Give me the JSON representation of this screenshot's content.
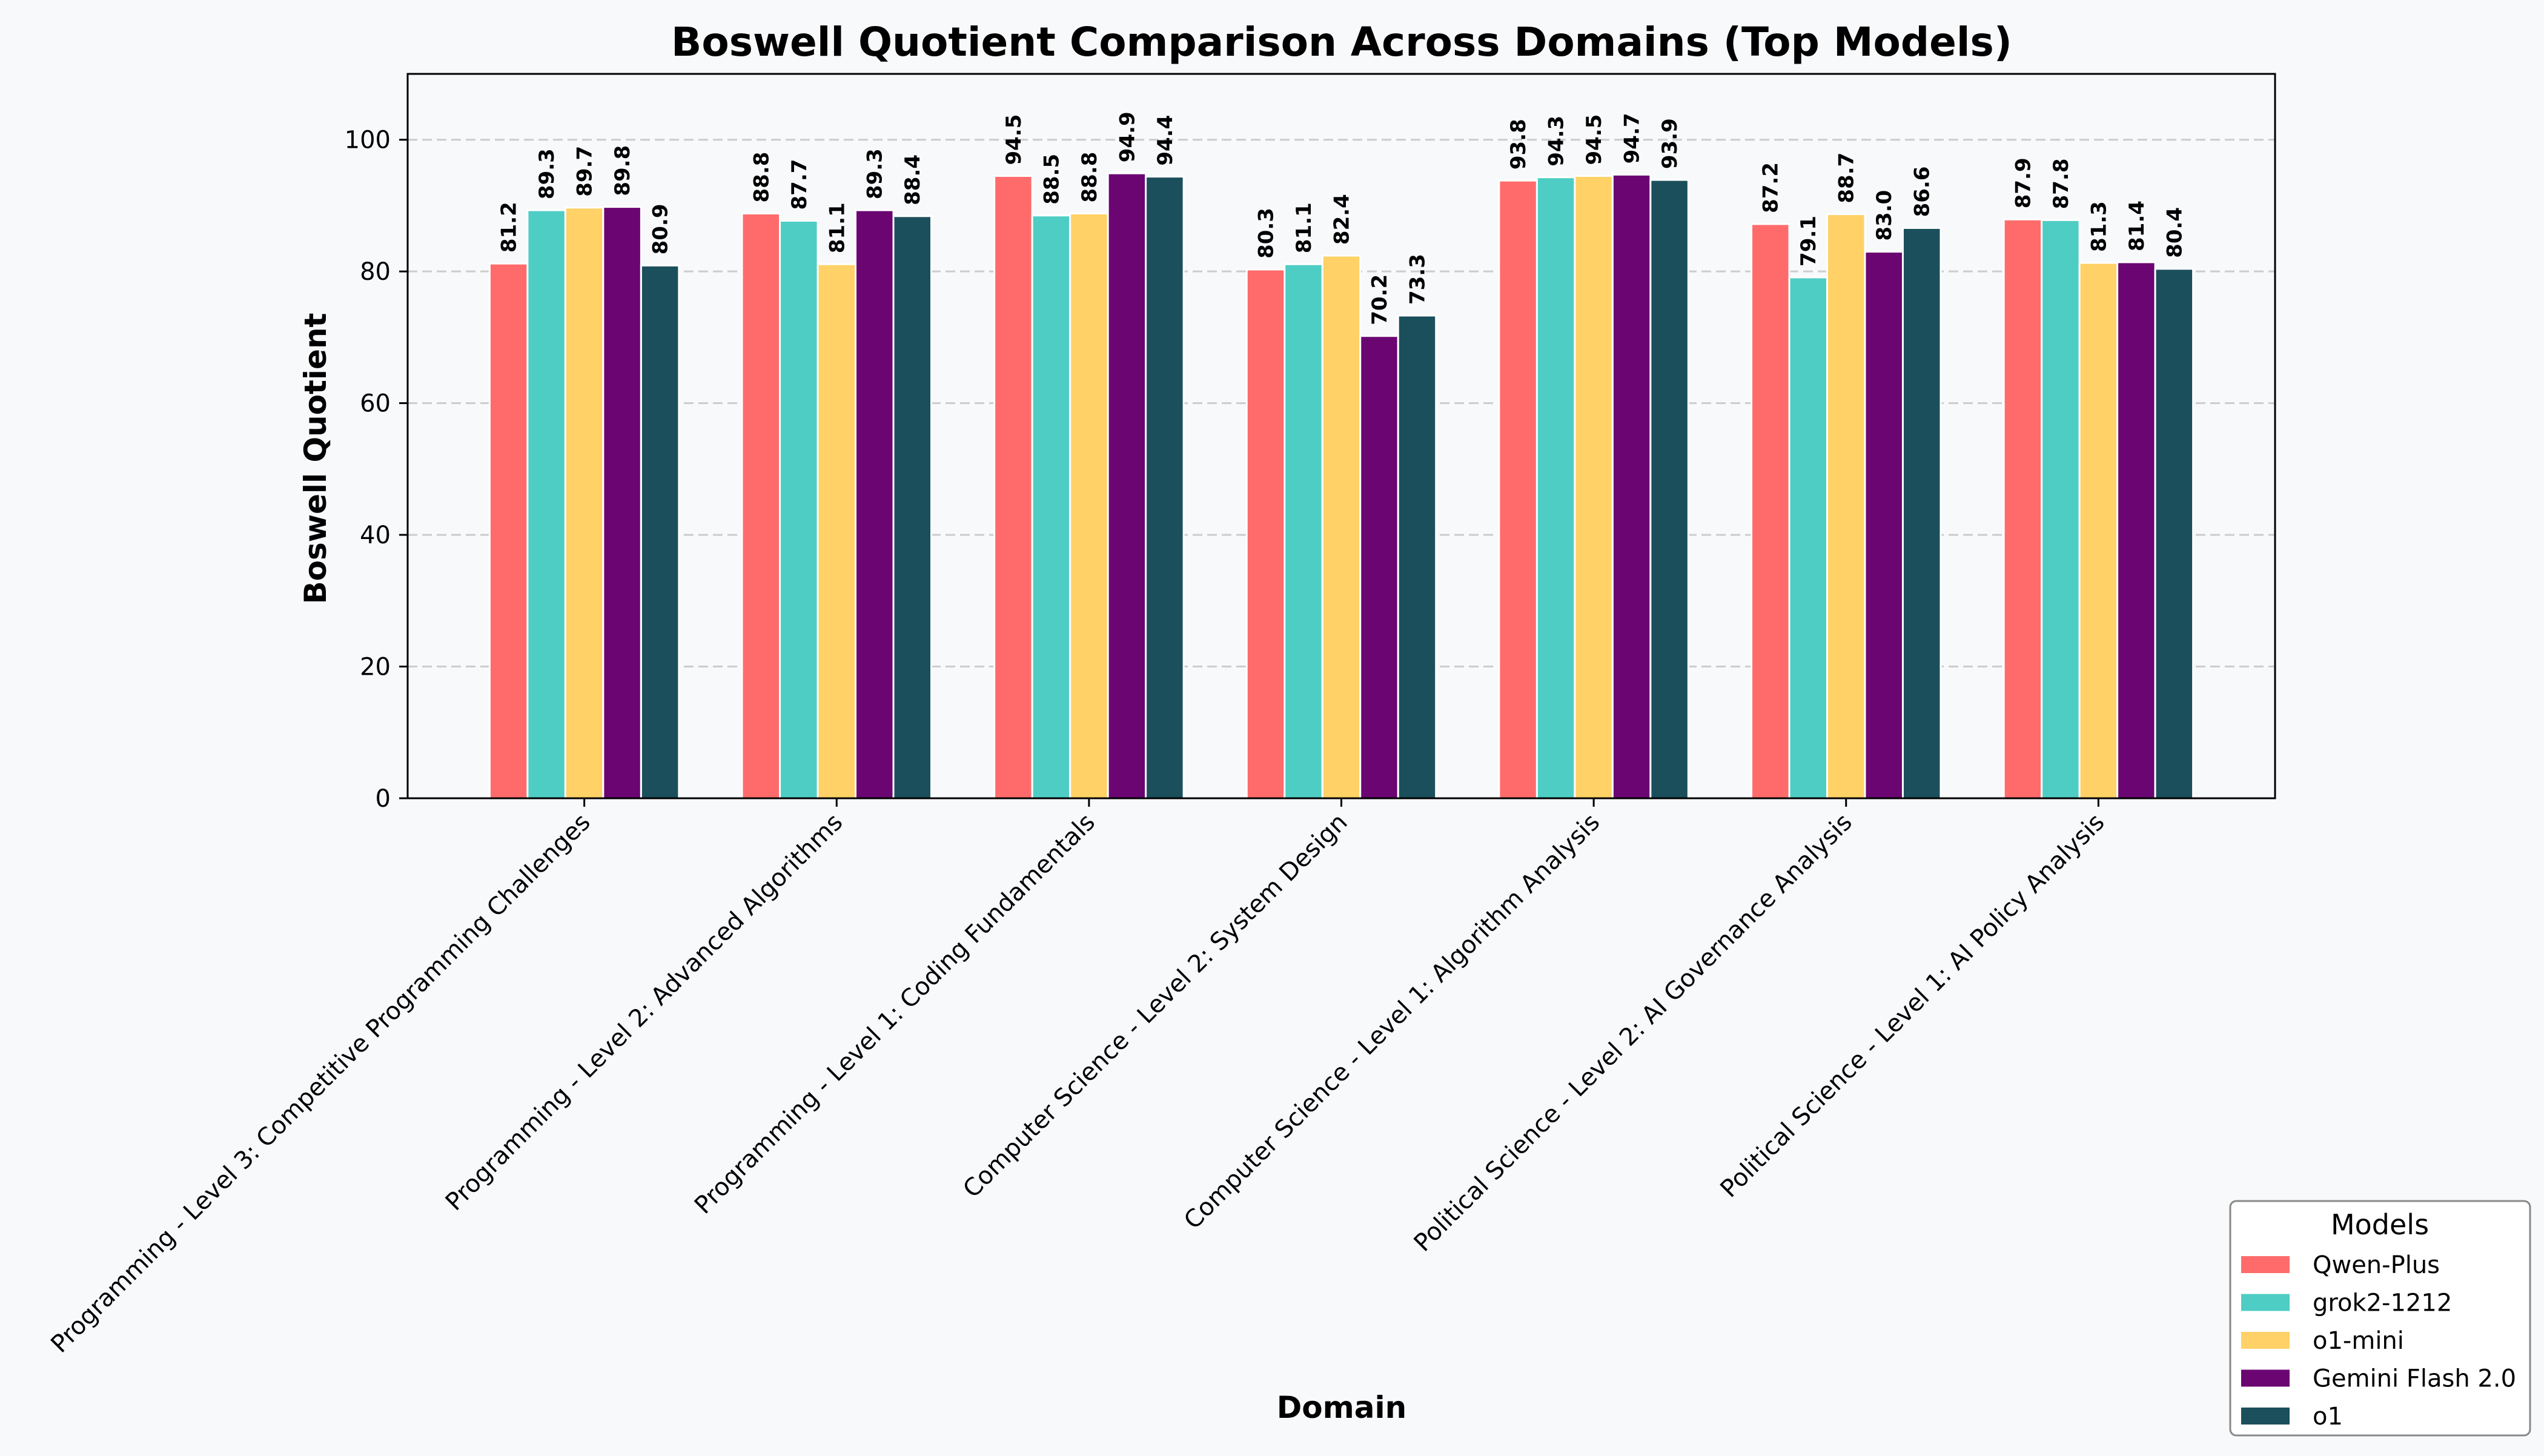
{
  "chart_data": {
    "type": "bar",
    "title": "Boswell Quotient Comparison Across Domains (Top Models)",
    "xlabel": "Domain",
    "ylabel": "Boswell Quotient",
    "ylim": [
      0,
      110
    ],
    "yticks": [
      0,
      20,
      40,
      60,
      80,
      100
    ],
    "grid": "horizontal dashed",
    "legend_title": "Models",
    "legend_position": "bottom-right",
    "categories": [
      "Programming - Level 3: Competitive Programming Challenges",
      "Programming - Level 2: Advanced Algorithms",
      "Programming - Level 1: Coding Fundamentals",
      "Computer Science - Level 2: System Design",
      "Computer Science - Level 1: Algorithm Analysis",
      "Political Science - Level 2: AI Governance Analysis",
      "Political Science - Level 1: AI Policy Analysis"
    ],
    "series": [
      {
        "name": "Qwen-Plus",
        "color": "#ff6b6b",
        "values": [
          81.2,
          88.8,
          94.5,
          80.3,
          93.8,
          87.2,
          87.9
        ]
      },
      {
        "name": "grok2-1212",
        "color": "#4ecdc4",
        "values": [
          89.3,
          87.7,
          88.5,
          81.1,
          94.3,
          79.1,
          87.8
        ]
      },
      {
        "name": "o1-mini",
        "color": "#ffd166",
        "values": [
          89.7,
          81.1,
          88.8,
          82.4,
          94.5,
          88.7,
          81.3
        ]
      },
      {
        "name": "Gemini Flash 2.0",
        "color": "#6a0572",
        "values": [
          89.8,
          89.3,
          94.9,
          70.2,
          94.7,
          83.0,
          81.4
        ]
      },
      {
        "name": "o1",
        "color": "#1b4f5c",
        "values": [
          80.9,
          88.4,
          94.4,
          73.3,
          93.9,
          86.6,
          80.4
        ]
      }
    ]
  }
}
